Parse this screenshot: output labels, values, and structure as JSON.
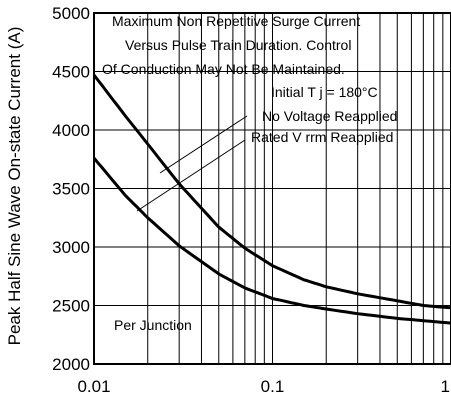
{
  "chart_data": {
    "type": "line",
    "ylabel": "Peak Half Sine Wave On-state Current (A)",
    "xlabel": "",
    "xscale": "log",
    "xlim": [
      0.01,
      1
    ],
    "ylim": [
      2000,
      5000
    ],
    "grid": true,
    "x_tick_labels": [
      "0.01",
      "0.1",
      "1"
    ],
    "y_tick_labels": [
      "2000",
      "2500",
      "3000",
      "3500",
      "4000",
      "4500",
      "5000"
    ],
    "annotations": {
      "title_line1": "Maximum Non Repetitive Surge Current",
      "title_line2": "Versus Pulse Train Duration. Control",
      "title_line3": "Of Conduction May Not Be Maintained.",
      "tj": "Initial T j = 180°C",
      "series1_label": "No Voltage Reapplied",
      "series2_label": "Rated V rrm Reapplied",
      "per_junction": "Per Junction"
    },
    "series": [
      {
        "name": "No Voltage Reapplied",
        "x": [
          0.01,
          0.015,
          0.02,
          0.03,
          0.05,
          0.07,
          0.1,
          0.15,
          0.2,
          0.3,
          0.5,
          0.7,
          1
        ],
        "y": [
          4470,
          4120,
          3880,
          3540,
          3170,
          2990,
          2840,
          2720,
          2660,
          2600,
          2540,
          2500,
          2480
        ]
      },
      {
        "name": "Rated V rrm Reapplied",
        "x": [
          0.01,
          0.015,
          0.02,
          0.03,
          0.05,
          0.07,
          0.1,
          0.15,
          0.2,
          0.3,
          0.5,
          0.7,
          1
        ],
        "y": [
          3760,
          3440,
          3250,
          3010,
          2770,
          2650,
          2560,
          2500,
          2470,
          2430,
          2390,
          2370,
          2350
        ]
      }
    ]
  }
}
